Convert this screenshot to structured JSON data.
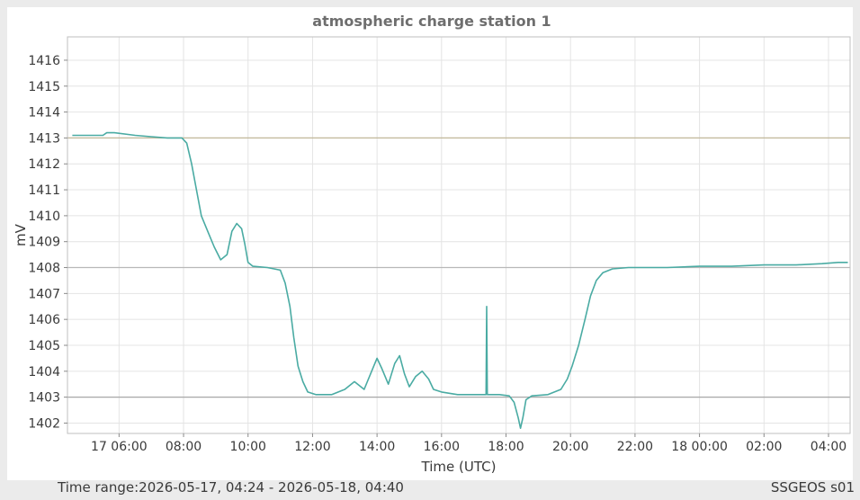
{
  "footer": {
    "time_range": "Time range:2026-05-17, 04:24 - 2026-05-18, 04:40",
    "station": "SSGEOS s01"
  },
  "chart_data": {
    "type": "line",
    "title": "atmospheric charge station 1",
    "xlabel": "Time (UTC)",
    "ylabel": "mV",
    "x_tick_labels": [
      "17 06:00",
      "08:00",
      "10:00",
      "12:00",
      "14:00",
      "16:00",
      "18:00",
      "20:00",
      "22:00",
      "18 00:00",
      "02:00",
      "04:00"
    ],
    "x_ticks_hours": [
      6,
      8,
      10,
      12,
      14,
      16,
      18,
      20,
      22,
      24,
      26,
      28
    ],
    "xlim_hours": [
      4.4,
      28.67
    ],
    "ylim": [
      1401.6,
      1416.9
    ],
    "y_ticks": [
      1402,
      1403,
      1404,
      1405,
      1406,
      1407,
      1408,
      1409,
      1410,
      1411,
      1412,
      1413,
      1414,
      1415,
      1416
    ],
    "grid": true,
    "reference_lines": [
      {
        "value": 1413,
        "color": "#c2b89a"
      },
      {
        "value": 1408,
        "color": "#b8b8b8"
      },
      {
        "value": 1403,
        "color": "#a8a8a8"
      }
    ],
    "series": [
      {
        "color": "#4aaba3",
        "points": [
          [
            4.55,
            1413.1
          ],
          [
            5.0,
            1413.1
          ],
          [
            5.5,
            1413.1
          ],
          [
            5.62,
            1413.2
          ],
          [
            5.85,
            1413.2
          ],
          [
            6.5,
            1413.1
          ],
          [
            7.0,
            1413.05
          ],
          [
            7.5,
            1413.0
          ],
          [
            7.95,
            1413.0
          ],
          [
            8.1,
            1412.8
          ],
          [
            8.25,
            1412.0
          ],
          [
            8.4,
            1411.0
          ],
          [
            8.55,
            1410.0
          ],
          [
            8.75,
            1409.4
          ],
          [
            8.95,
            1408.8
          ],
          [
            9.15,
            1408.3
          ],
          [
            9.35,
            1408.5
          ],
          [
            9.5,
            1409.4
          ],
          [
            9.65,
            1409.7
          ],
          [
            9.8,
            1409.5
          ],
          [
            9.9,
            1408.9
          ],
          [
            10.0,
            1408.2
          ],
          [
            10.15,
            1408.05
          ],
          [
            10.6,
            1408.0
          ],
          [
            11.0,
            1407.9
          ],
          [
            11.15,
            1407.4
          ],
          [
            11.3,
            1406.5
          ],
          [
            11.42,
            1405.3
          ],
          [
            11.55,
            1404.2
          ],
          [
            11.7,
            1403.6
          ],
          [
            11.85,
            1403.2
          ],
          [
            12.1,
            1403.1
          ],
          [
            12.6,
            1403.1
          ],
          [
            13.0,
            1403.3
          ],
          [
            13.3,
            1403.6
          ],
          [
            13.6,
            1403.3
          ],
          [
            13.9,
            1404.2
          ],
          [
            14.0,
            1404.5
          ],
          [
            14.15,
            1404.1
          ],
          [
            14.35,
            1403.5
          ],
          [
            14.55,
            1404.3
          ],
          [
            14.7,
            1404.6
          ],
          [
            14.85,
            1403.9
          ],
          [
            15.0,
            1403.4
          ],
          [
            15.2,
            1403.8
          ],
          [
            15.4,
            1404.0
          ],
          [
            15.6,
            1403.7
          ],
          [
            15.75,
            1403.3
          ],
          [
            16.0,
            1403.2
          ],
          [
            16.5,
            1403.1
          ],
          [
            17.0,
            1403.1
          ],
          [
            17.38,
            1403.1
          ],
          [
            17.4,
            1406.5
          ],
          [
            17.42,
            1403.1
          ],
          [
            17.8,
            1403.1
          ],
          [
            18.1,
            1403.05
          ],
          [
            18.25,
            1402.8
          ],
          [
            18.38,
            1402.2
          ],
          [
            18.45,
            1401.8
          ],
          [
            18.52,
            1402.2
          ],
          [
            18.62,
            1402.9
          ],
          [
            18.8,
            1403.05
          ],
          [
            19.3,
            1403.1
          ],
          [
            19.7,
            1403.3
          ],
          [
            19.9,
            1403.7
          ],
          [
            20.05,
            1404.2
          ],
          [
            20.25,
            1405.0
          ],
          [
            20.45,
            1406.0
          ],
          [
            20.62,
            1406.9
          ],
          [
            20.8,
            1407.5
          ],
          [
            21.0,
            1407.8
          ],
          [
            21.3,
            1407.95
          ],
          [
            21.8,
            1408.0
          ],
          [
            22.5,
            1408.0
          ],
          [
            23.0,
            1408.0
          ],
          [
            24.0,
            1408.05
          ],
          [
            25.0,
            1408.05
          ],
          [
            26.0,
            1408.1
          ],
          [
            27.0,
            1408.1
          ],
          [
            27.8,
            1408.15
          ],
          [
            28.3,
            1408.2
          ],
          [
            28.6,
            1408.2
          ]
        ]
      }
    ]
  }
}
